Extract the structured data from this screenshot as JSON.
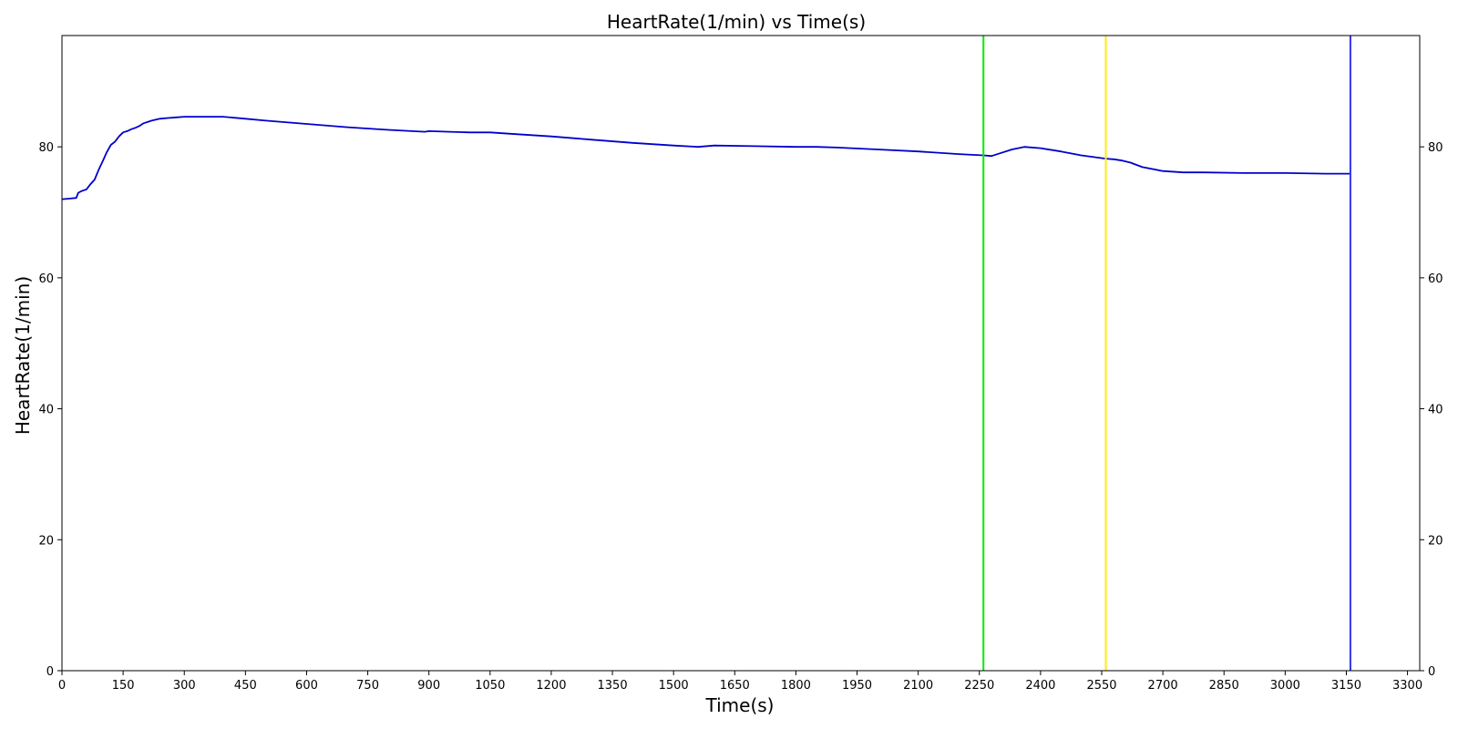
{
  "chart_data": {
    "type": "line",
    "title": "HeartRate(1/min) vs Time(s)",
    "xlabel": "Time(s)",
    "ylabel": "HeartRate(1/min)",
    "xlim": [
      0,
      3330
    ],
    "ylim": [
      0,
      97
    ],
    "xticks": [
      0,
      150,
      300,
      450,
      600,
      750,
      900,
      1050,
      1200,
      1350,
      1500,
      1650,
      1800,
      1950,
      2100,
      2250,
      2400,
      2550,
      2700,
      2850,
      3000,
      3150,
      3300
    ],
    "yticks": [
      0,
      20,
      40,
      60,
      80
    ],
    "right_axis_ticks": true,
    "grid": false,
    "legend": "none",
    "series": [
      {
        "color": "#0000cc",
        "x": [
          0,
          20,
          35,
          40,
          50,
          60,
          70,
          80,
          90,
          100,
          110,
          120,
          130,
          140,
          150,
          160,
          170,
          180,
          190,
          200,
          220,
          240,
          260,
          280,
          300,
          320,
          350,
          395,
          450,
          500,
          600,
          700,
          800,
          890,
          900,
          950,
          1000,
          1050,
          1100,
          1200,
          1300,
          1400,
          1500,
          1560,
          1600,
          1700,
          1800,
          1850,
          1900,
          2000,
          2100,
          2200,
          2260,
          2280,
          2300,
          2330,
          2360,
          2400,
          2450,
          2500,
          2560,
          2580,
          2600,
          2620,
          2650,
          2700,
          2750,
          2800,
          2900,
          3000,
          3100,
          3160
        ],
        "y": [
          72.0,
          72.1,
          72.2,
          73.0,
          73.3,
          73.5,
          74.3,
          75.0,
          76.5,
          77.8,
          79.2,
          80.3,
          80.8,
          81.6,
          82.2,
          82.4,
          82.7,
          82.9,
          83.2,
          83.6,
          84.0,
          84.3,
          84.4,
          84.5,
          84.6,
          84.6,
          84.6,
          84.6,
          84.3,
          84.0,
          83.5,
          83.0,
          82.6,
          82.3,
          82.4,
          82.3,
          82.2,
          82.2,
          82.0,
          81.6,
          81.1,
          80.6,
          80.2,
          80.0,
          80.2,
          80.1,
          80.0,
          80.0,
          79.9,
          79.6,
          79.3,
          78.9,
          78.7,
          78.6,
          79.0,
          79.6,
          80.0,
          79.8,
          79.3,
          78.7,
          78.2,
          78.1,
          77.9,
          77.6,
          76.9,
          76.3,
          76.1,
          76.1,
          76.0,
          76.0,
          75.9,
          75.9
        ]
      }
    ],
    "vertical_lines": [
      {
        "x": 2260,
        "color": "#00ee00"
      },
      {
        "x": 2560,
        "color": "#ffee00"
      },
      {
        "x": 3160,
        "color": "#3333ee"
      }
    ]
  }
}
